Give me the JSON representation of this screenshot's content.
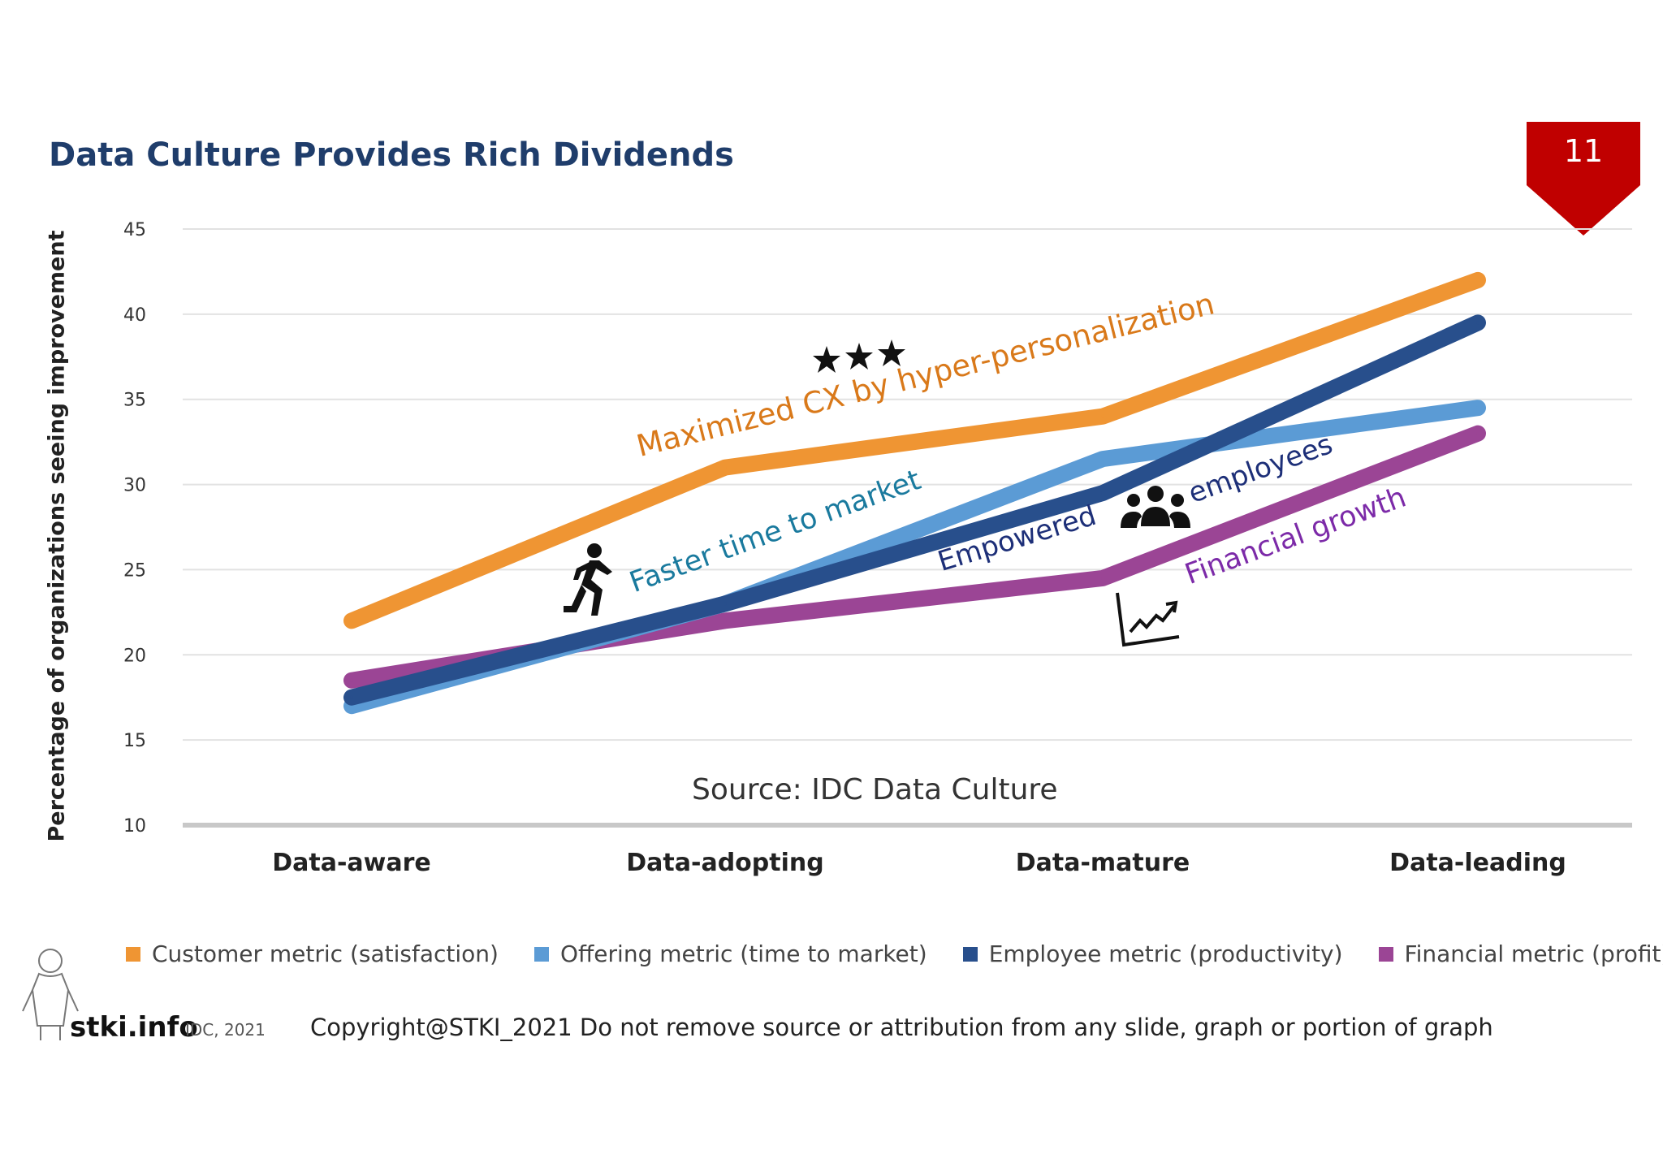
{
  "slide": {
    "title": "Data Culture Provides Rich Dividends",
    "page_number": "11",
    "source": "Source: IDC Data Culture",
    "copyright": "Copyright@STKI_2021 Do not remove source or attribution from any slide, graph or portion of graph",
    "logo_text": "stki.info",
    "logo_sub": "IDC, 2021",
    "badge_color": "#c00000"
  },
  "annotations": {
    "customer": "Maximized CX by hyper-personalization",
    "offering": "Faster time to market",
    "employee_a": "Empowered",
    "employee_b": "employees",
    "financial": "Financial growth"
  },
  "icons": [
    "stars-icon",
    "runner-icon",
    "people-icon",
    "growth-chart-icon",
    "person-outline-icon"
  ],
  "chart_data": {
    "type": "line",
    "title": "Data Culture Provides Rich Dividends",
    "xlabel": "",
    "ylabel": "Percentage of organizations seeing improvement",
    "categories": [
      "Data-aware",
      "Data-adopting",
      "Data-mature",
      "Data-leading"
    ],
    "ylim": [
      10,
      45
    ],
    "yticks": [
      10,
      15,
      20,
      25,
      30,
      35,
      40,
      45
    ],
    "grid": true,
    "legend_position": "bottom",
    "series": [
      {
        "name": "Customer metric (satisfaction)",
        "color": "#ef9533",
        "values": [
          22,
          31,
          34,
          42
        ]
      },
      {
        "name": "Offering metric (time to market)",
        "color": "#5b9bd5",
        "values": [
          17,
          23,
          31.5,
          34.5
        ]
      },
      {
        "name": "Employee metric (productivity)",
        "color": "#284f8c",
        "values": [
          17.5,
          23,
          29.5,
          39.5
        ]
      },
      {
        "name": "Financial metric (profit)",
        "color": "#9b4595",
        "values": [
          18.5,
          22,
          24.5,
          33
        ]
      }
    ]
  }
}
